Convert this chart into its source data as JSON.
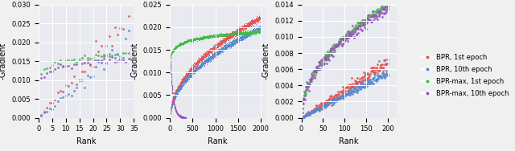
{
  "background_color": "#e8eaf0",
  "fig_facecolor": "#f0f0f0",
  "colors": {
    "bpr_1st": "#e05555",
    "bpr_10th": "#5588cc",
    "bprmax_1st": "#44bb44",
    "bprmax_10th": "#9955bb"
  },
  "legend_labels": [
    "BPR, 1st epoch",
    "BPR, 10th epoch",
    "BPR-max, 1st epoch",
    "BPR-max, 10th epoch"
  ],
  "xlabel": "Rank",
  "ylabel": "-Gradient",
  "plot1": {
    "xlim": [
      0,
      35
    ],
    "ylim": [
      0,
      0.03
    ],
    "xticks": [
      0,
      5,
      10,
      15,
      20,
      25,
      30,
      35
    ],
    "yticks": [
      0.0,
      0.005,
      0.01,
      0.015,
      0.02,
      0.025,
      0.03
    ]
  },
  "plot2": {
    "xlim": [
      0,
      2100
    ],
    "ylim": [
      0,
      0.025
    ],
    "xticks": [
      0,
      500,
      1000,
      1500,
      2000
    ],
    "yticks": [
      0.0,
      0.005,
      0.01,
      0.015,
      0.02,
      0.025
    ]
  },
  "plot3": {
    "xlim": [
      0,
      220
    ],
    "ylim": [
      0,
      0.014
    ],
    "xticks": [
      0,
      50,
      100,
      150,
      200
    ],
    "yticks": [
      0.0,
      0.002,
      0.004,
      0.006,
      0.008,
      0.01,
      0.012,
      0.014
    ]
  },
  "marker_size": 4,
  "alpha": 0.9
}
